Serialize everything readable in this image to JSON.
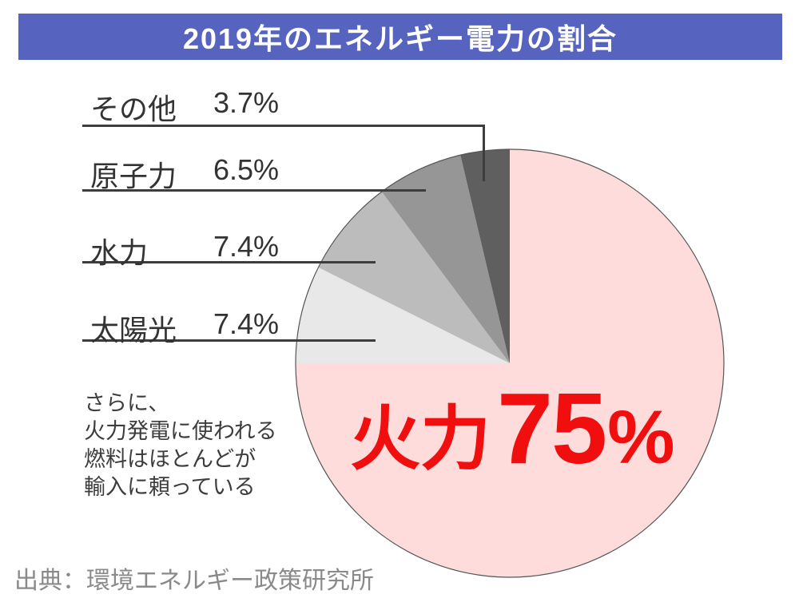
{
  "title": {
    "text": "2019年のエネルギー電力の割合"
  },
  "legend": {
    "items": [
      {
        "key": "other",
        "name": "その他",
        "value": "3.7%"
      },
      {
        "key": "nuclear",
        "name": "原子力",
        "value": "6.5%"
      },
      {
        "key": "hydro",
        "name": "水力",
        "value": "7.4%"
      },
      {
        "key": "solar",
        "name": "太陽光",
        "value": "7.4%"
      }
    ]
  },
  "pie_label": {
    "name": "火力",
    "number": "75",
    "unit": "%"
  },
  "note": {
    "text": "さらに、\n火力発電に使われる\n燃料はほとんどが\n輸入に頼っている"
  },
  "source": {
    "text": "出典：環境エネルギー政策研究所"
  },
  "colors": {
    "banner_background": "#5663bf",
    "banner_text": "#ffffff",
    "big_label_red": "#f10e0e",
    "leader_line": "#3d3d3d",
    "legend_text": "#333333",
    "note_text": "#3d3d3d",
    "source_text": "#8a8a8a",
    "pie_outline": "#555555"
  },
  "chart_data": {
    "type": "pie",
    "title": "2019年のエネルギー電力の割合",
    "unit": "%",
    "start_angle_deg": 0,
    "direction": "clockwise",
    "center": [
      638,
      455
    ],
    "radius": 268,
    "series": [
      {
        "key": "thermal",
        "label": "火力",
        "value": 75,
        "color": "#fddcdb"
      },
      {
        "key": "solar",
        "label": "太陽光",
        "value": 7.4,
        "color": "#e8e8e8"
      },
      {
        "key": "hydro",
        "label": "水力",
        "value": 7.4,
        "color": "#bcbcbc"
      },
      {
        "key": "nuclear",
        "label": "原子力",
        "value": 6.5,
        "color": "#969696"
      },
      {
        "key": "other",
        "label": "その他",
        "value": 3.7,
        "color": "#5f5f5f"
      }
    ],
    "legend_position": "left",
    "annotations": [
      "火力75%",
      "さらに、火力発電に使われる燃料はほとんどが輸入に頼っている"
    ]
  }
}
